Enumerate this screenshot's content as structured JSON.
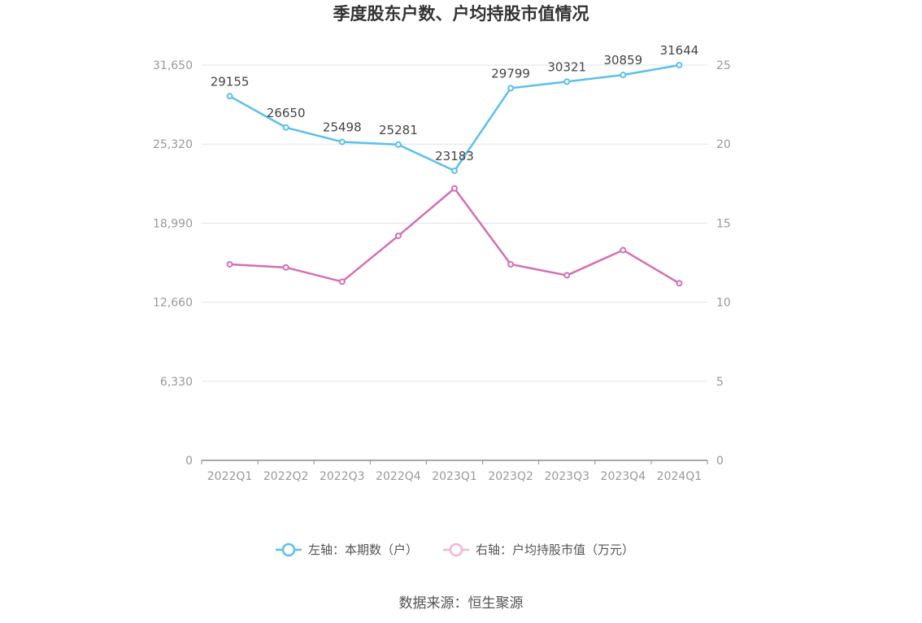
{
  "chart_data": {
    "type": "line",
    "title": "季度股东户数、户均持股市值情况",
    "categories": [
      "2022Q1",
      "2022Q2",
      "2022Q3",
      "2022Q4",
      "2023Q1",
      "2023Q2",
      "2023Q3",
      "2023Q4",
      "2024Q1"
    ],
    "series": [
      {
        "name": "左轴：本期数（户）",
        "axis": "left",
        "color": "#5bc0eb",
        "values": [
          29155,
          26650,
          25498,
          25281,
          23183,
          29799,
          30321,
          30859,
          31644
        ],
        "data_labels": [
          "29155",
          "26650",
          "25498",
          "25281",
          "23183",
          "29799",
          "30321",
          "30859",
          "31644"
        ]
      },
      {
        "name": "右轴：户均持股市值（万元）",
        "axis": "right",
        "color": "#d46fb6",
        "values": [
          12.4,
          12.2,
          11.3,
          14.2,
          17.2,
          12.4,
          11.7,
          13.3,
          11.2
        ]
      }
    ],
    "y_left": {
      "lim": [
        0,
        31650
      ],
      "ticks": [
        "0",
        "6,330",
        "12,660",
        "18,990",
        "25,320",
        "31,650"
      ]
    },
    "y_right": {
      "lim": [
        0,
        25
      ],
      "ticks": [
        "0",
        "5",
        "10",
        "15",
        "20",
        "25"
      ]
    },
    "grid": true,
    "legend_position": "bottom-center",
    "source": "数据来源：恒生聚源"
  }
}
